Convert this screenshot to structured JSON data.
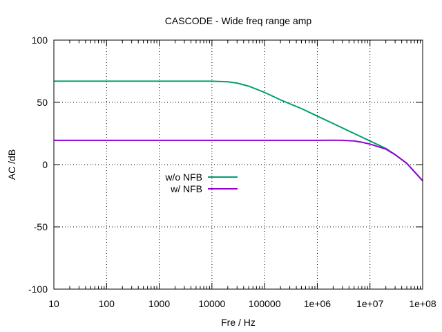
{
  "chart_data": {
    "type": "line",
    "title": "CASCODE - Wide freq range amp",
    "xlabel": "Fre / Hz",
    "ylabel": "AC /dB",
    "x_scale": "log",
    "xlim": [
      10,
      100000000
    ],
    "ylim": [
      -100,
      100
    ],
    "grid": true,
    "legend_position": "center-left",
    "x_ticks": [
      {
        "value": 10,
        "label": "10"
      },
      {
        "value": 100,
        "label": "100"
      },
      {
        "value": 1000,
        "label": "1000"
      },
      {
        "value": 10000,
        "label": "10000"
      },
      {
        "value": 100000,
        "label": "100000"
      },
      {
        "value": 1000000,
        "label": "1e+06"
      },
      {
        "value": 10000000,
        "label": "1e+07"
      },
      {
        "value": 100000000,
        "label": "1e+08"
      }
    ],
    "y_ticks": [
      {
        "value": 100,
        "label": "100"
      },
      {
        "value": 50,
        "label": "50"
      },
      {
        "value": 0,
        "label": "0"
      },
      {
        "value": -50,
        "label": "-50"
      },
      {
        "value": -100,
        "label": "-100"
      }
    ],
    "series": [
      {
        "name": "w/o NFB",
        "color": "#009e73",
        "x": [
          10,
          100,
          1000,
          10000,
          20000,
          30000,
          50000,
          100000,
          200000,
          500000,
          1000000,
          2000000,
          5000000,
          10000000,
          20000000,
          30000000,
          50000000,
          100000000
        ],
        "y": [
          67,
          67,
          67,
          67,
          66.5,
          65.5,
          63,
          58,
          52,
          45,
          39,
          33,
          25,
          19,
          13,
          8,
          1,
          -13
        ]
      },
      {
        "name": "w/ NFB",
        "color": "#9400d3",
        "x": [
          10,
          100,
          1000,
          10000,
          100000,
          1000000,
          2000000,
          3000000,
          5000000,
          7000000,
          10000000,
          20000000,
          30000000,
          50000000,
          100000000
        ],
        "y": [
          19.5,
          19.5,
          19.5,
          19.5,
          19.5,
          19.5,
          19.6,
          19.5,
          19,
          18,
          16.5,
          12.5,
          8,
          1,
          -13
        ]
      }
    ]
  }
}
